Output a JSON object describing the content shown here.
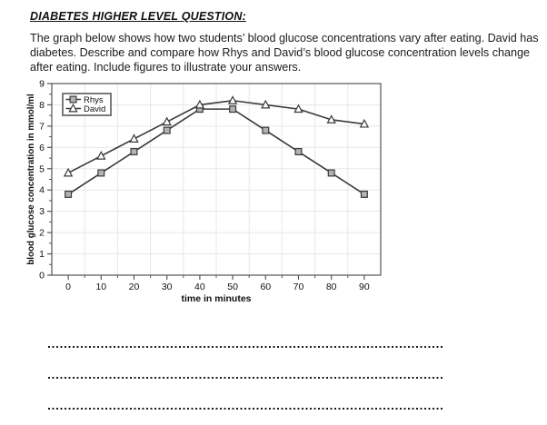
{
  "doc": {
    "title": "DIABETES HIGHER LEVEL QUESTION:",
    "intro": "The graph below shows how two students’ blood glucose concentrations vary after eating. David has diabetes. Describe and compare how Rhys and David’s blood glucose concentration levels change after eating. Include figures to illustrate your answers."
  },
  "chart_data": {
    "type": "line",
    "title": "",
    "xlabel": "time in minutes",
    "ylabel": "blood glucose concentration in mmol/ml",
    "x": [
      0,
      10,
      20,
      30,
      40,
      50,
      60,
      70,
      80,
      90
    ],
    "series": [
      {
        "name": "Rhys",
        "marker": "square",
        "values": [
          3.8,
          4.8,
          5.8,
          6.8,
          7.8,
          7.8,
          6.8,
          5.8,
          4.8,
          3.8
        ]
      },
      {
        "name": "David",
        "marker": "triangle",
        "values": [
          4.8,
          5.6,
          6.4,
          7.2,
          8.0,
          8.2,
          8.0,
          7.8,
          7.3,
          7.1
        ]
      }
    ],
    "xlim": [
      -5,
      95
    ],
    "ylim": [
      0,
      9
    ],
    "x_ticks": [
      0,
      10,
      20,
      30,
      40,
      50,
      60,
      70,
      80,
      90
    ],
    "y_ticks": [
      0,
      1,
      2,
      3,
      4,
      5,
      6,
      7,
      8,
      9
    ],
    "grid": true,
    "legend_position": "top-left",
    "colors": {
      "line": "#3a3a3a",
      "grid": "#e7e7e7",
      "axis": "#555555",
      "text": "#111111",
      "square_fill": "#b3b3b3",
      "triangle_fill": "#ffffff",
      "legend_border": "#7a7a7a",
      "legend_bg": "#ffffff"
    }
  },
  "answers": {
    "line_count": 3
  }
}
